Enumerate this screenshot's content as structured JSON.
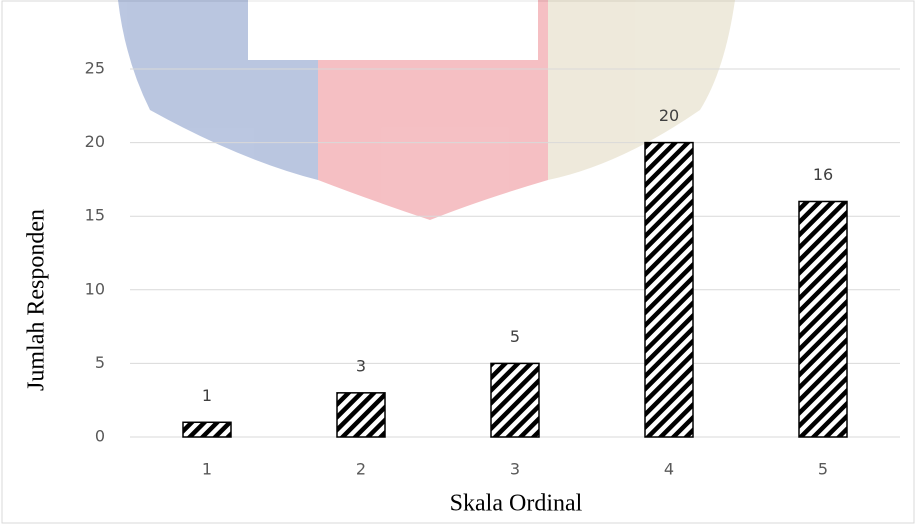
{
  "chart_data": {
    "type": "bar",
    "x_label": "Skala Ordinal",
    "y_label": "Jumlah Responden",
    "categories": [
      "1",
      "2",
      "3",
      "4",
      "5"
    ],
    "values": [
      1,
      3,
      5,
      20,
      16
    ],
    "color": "#000000",
    "ylim": [
      0,
      25
    ],
    "yticks": [
      0,
      5,
      10,
      15,
      20,
      25
    ],
    "grid": true
  }
}
